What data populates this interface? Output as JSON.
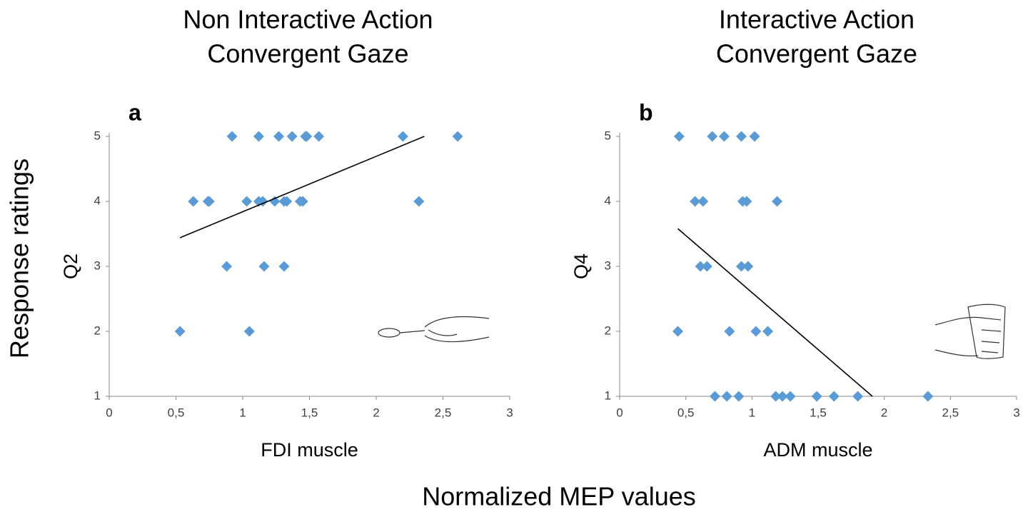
{
  "label_y": "Response ratings",
  "label_x": "Normalized MEP values",
  "chart_data": [
    {
      "type": "scatter",
      "title": "Non Interactive Action",
      "subtitle": "Convergent Gaze",
      "panel": "a",
      "y_label": "Q2",
      "x_label": "FDI muscle",
      "color": "#5b9bd5",
      "x": [
        0.92,
        1.12,
        1.27,
        1.37,
        1.47,
        1.48,
        1.57,
        2.2,
        2.61,
        0.63,
        0.74,
        0.75,
        1.03,
        1.12,
        1.15,
        1.24,
        1.31,
        1.33,
        1.43,
        1.45,
        2.32,
        0.88,
        1.16,
        1.31,
        0.53,
        1.05
      ],
      "values": [
        5,
        5,
        5,
        5,
        5,
        5,
        5,
        5,
        5,
        4,
        4,
        4,
        4,
        4,
        4,
        4,
        4,
        4,
        4,
        4,
        4,
        3,
        3,
        3,
        2,
        2
      ],
      "trendline": {
        "x": [
          0.53,
          2.36
        ],
        "y": [
          3.44,
          5
        ]
      },
      "xlim": [
        0,
        3
      ],
      "ylim": [
        1,
        5
      ],
      "xticks": [
        0,
        {
          "value": 0.5,
          "label": "0,5"
        },
        1,
        {
          "value": 1.5,
          "label": "1,5"
        },
        2,
        {
          "value": 2.5,
          "label": "2,5"
        },
        3
      ],
      "yticks": [
        1,
        2,
        3,
        4,
        5
      ]
    },
    {
      "type": "scatter",
      "title": "Interactive Action",
      "subtitle": "Convergent Gaze",
      "panel": "b",
      "y_label": "Q4",
      "x_label": "ADM muscle",
      "color": "#5b9bd5",
      "x": [
        0.45,
        0.7,
        0.79,
        0.92,
        1.02,
        0.57,
        0.63,
        0.93,
        0.96,
        1.19,
        0.61,
        0.66,
        0.92,
        0.97,
        0.44,
        0.83,
        1.03,
        1.12,
        0.72,
        0.81,
        0.9,
        1.18,
        1.23,
        1.29,
        1.49,
        1.62,
        1.8,
        2.33
      ],
      "values": [
        5,
        5,
        5,
        5,
        5,
        4,
        4,
        4,
        4,
        4,
        3,
        3,
        3,
        3,
        2,
        2,
        2,
        2,
        1,
        1,
        1,
        1,
        1,
        1,
        1,
        1,
        1,
        1
      ],
      "trendline": {
        "x": [
          0.44,
          1.91
        ],
        "y": [
          3.58,
          1
        ]
      },
      "xlim": [
        0,
        3
      ],
      "ylim": [
        1,
        5
      ],
      "xticks": [
        0,
        {
          "value": 0.5,
          "label": "0,5"
        },
        1,
        {
          "value": 1.5,
          "label": "1,5"
        },
        2,
        {
          "value": 2.5,
          "label": "2,5"
        },
        3
      ],
      "yticks": [
        1,
        2,
        3,
        4,
        5
      ]
    }
  ]
}
